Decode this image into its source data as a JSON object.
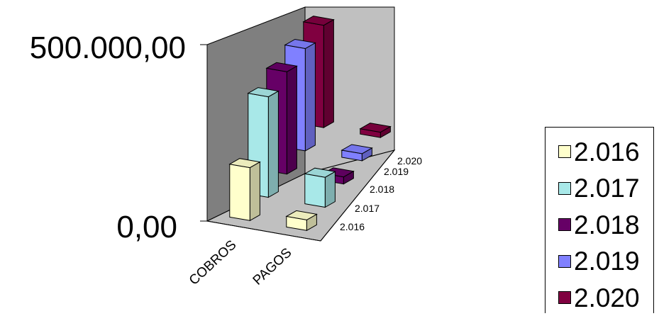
{
  "chart_data": {
    "type": "bar",
    "categories": [
      "COBROS",
      "PAGOS"
    ],
    "depth_labels": [
      "2.016",
      "2.017",
      "2.018",
      "2.019",
      "2.020"
    ],
    "y_tick_labels": [
      "0,00",
      "500.000,00"
    ],
    "ylim": [
      0,
      500000
    ],
    "series": [
      {
        "name": "2.016",
        "color": "#FFFFCC",
        "values": [
          150000,
          30000
        ]
      },
      {
        "name": "2.017",
        "color": "#A8E8E8",
        "values": [
          285000,
          85000
        ]
      },
      {
        "name": "2.018",
        "color": "#660066",
        "values": [
          290000,
          20000
        ]
      },
      {
        "name": "2.019",
        "color": "#8080FF",
        "values": [
          290000,
          20000
        ]
      },
      {
        "name": "2.020",
        "color": "#800040",
        "values": [
          290000,
          15000
        ]
      }
    ],
    "grid": false,
    "legend_position": "right"
  }
}
